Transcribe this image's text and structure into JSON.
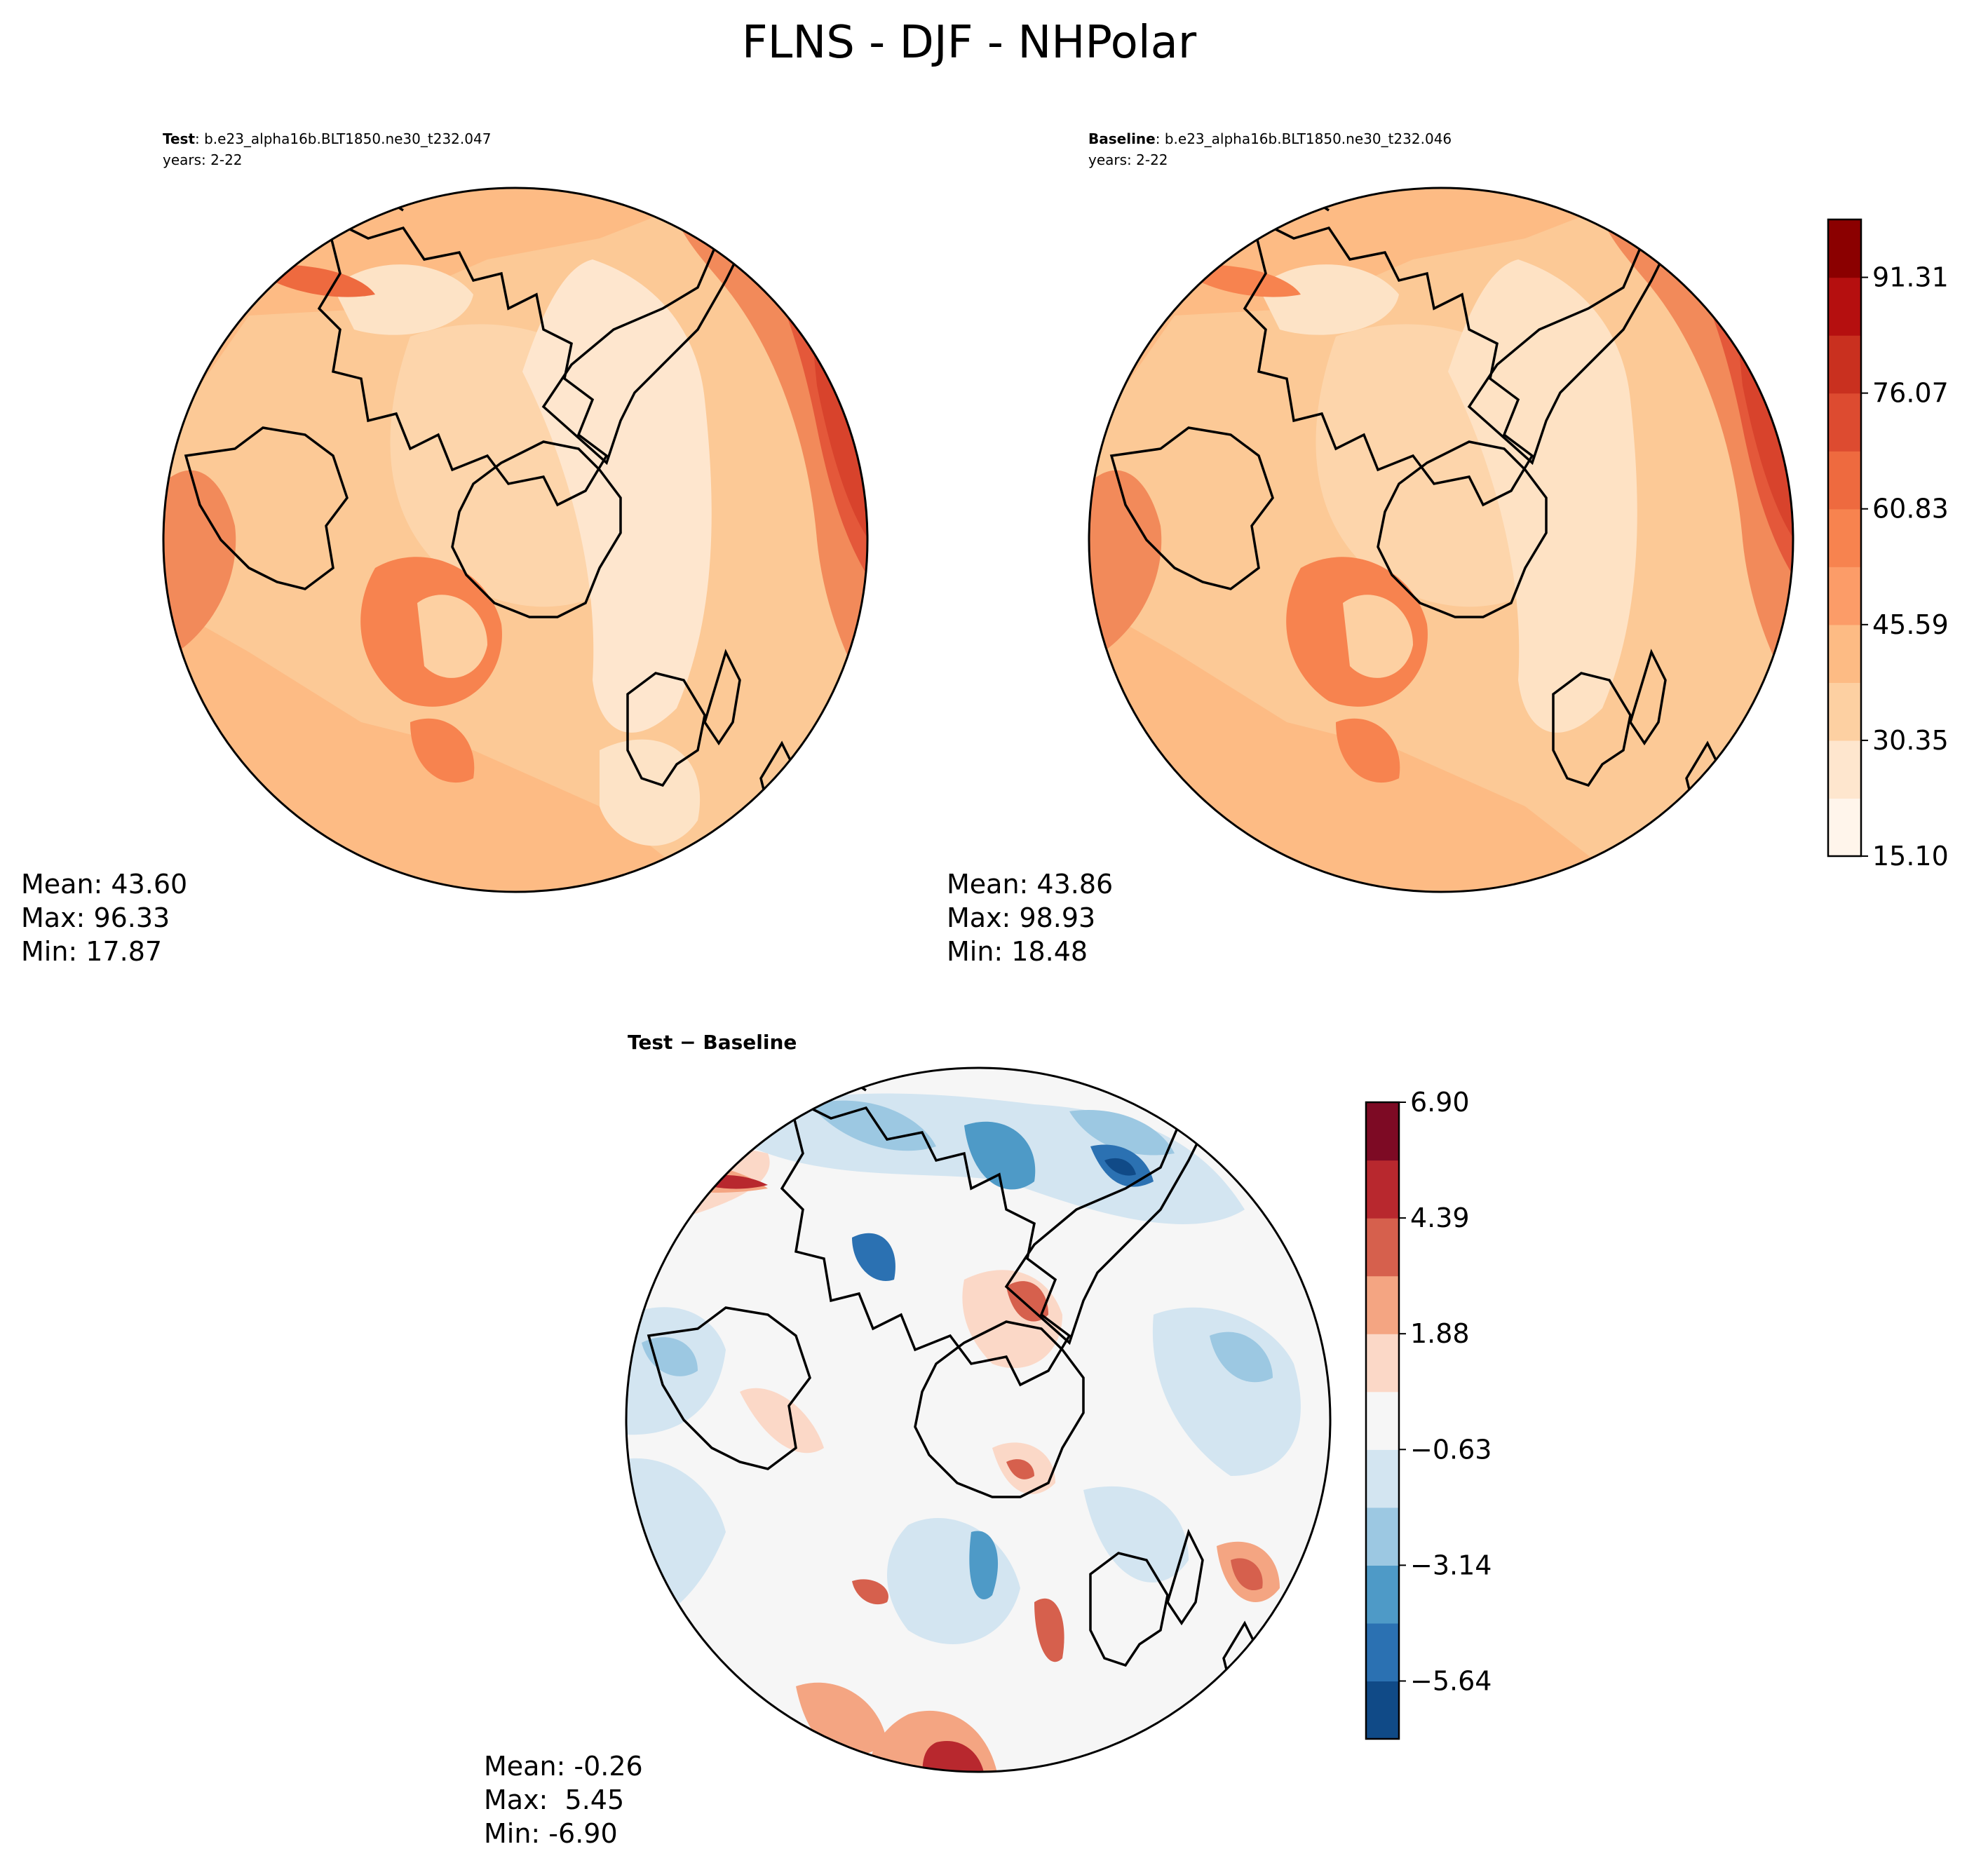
{
  "figure_title": "FLNS - DJF - NHPolar",
  "panels": {
    "test": {
      "label_bold": "Test",
      "label_rest": ": b.e23_alpha16b.BLT1850.ne30_t232.047",
      "years": "years: 2-22",
      "stats": {
        "mean": "Mean: 43.60",
        "max": "Max: 96.33",
        "min": "Min: 17.87"
      }
    },
    "baseline": {
      "label_bold": "Baseline",
      "label_rest": ": b.e23_alpha16b.BLT1850.ne30_t232.046",
      "years": "years: 2-22",
      "stats": {
        "mean": "Mean: 43.86",
        "max": "Max: 98.93",
        "min": "Min: 18.48"
      }
    },
    "diff": {
      "title": "Test − Baseline",
      "stats": {
        "mean": "Mean: -0.26",
        "max": "Max:  5.45",
        "min": "Min: -6.90"
      }
    }
  },
  "colorbars": {
    "main": {
      "tick_labels": [
        "15.10",
        "30.35",
        "45.59",
        "60.83",
        "76.07",
        "91.31"
      ],
      "colors": [
        "#fff5eb",
        "#fee6ce",
        "#fdd0a2",
        "#fdbb84",
        "#fc9c68",
        "#f7834f",
        "#ee6a3f",
        "#dd4b30",
        "#c9301f",
        "#b50f0f",
        "#8b0000"
      ]
    },
    "diff": {
      "tick_labels": [
        "−5.64",
        "−3.14",
        "−0.63",
        "1.88",
        "4.39",
        "6.90"
      ],
      "colors": [
        "#104a87",
        "#2b71b2",
        "#4e9ac7",
        "#9cc8e2",
        "#d3e5f1",
        "#f6f6f6",
        "#fbd8c7",
        "#f4a582",
        "#d6604d",
        "#b8282e",
        "#7d0a24"
      ]
    }
  }
}
